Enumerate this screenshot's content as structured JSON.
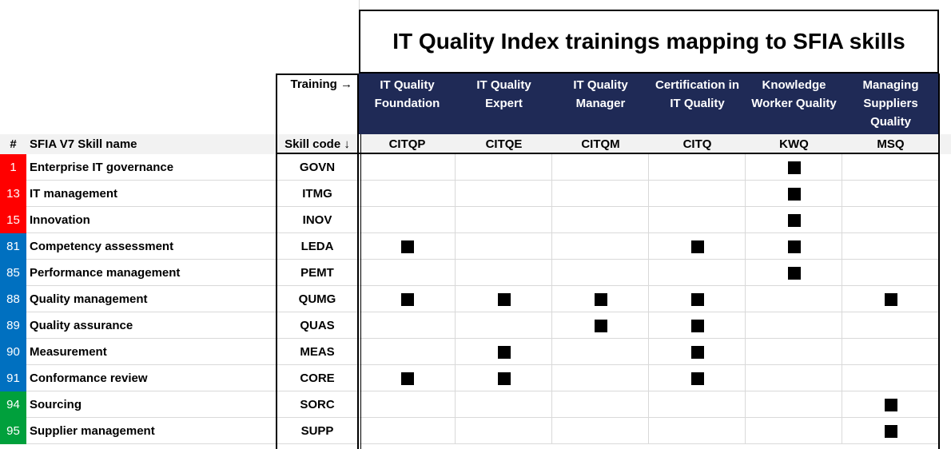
{
  "title": "IT Quality Index trainings mapping to SFIA skills",
  "training_label": "Training →",
  "skill_code_label": "Skill code ↓",
  "number_header": "#",
  "name_header": "SFIA V7 Skill name",
  "trainings": [
    {
      "name": "IT Quality Foundation",
      "code": "CITQP"
    },
    {
      "name": "IT Quality Expert",
      "code": "CITQE"
    },
    {
      "name": "IT Quality Manager",
      "code": "CITQM"
    },
    {
      "name": "Certification in IT Quality",
      "code": "CITQ"
    },
    {
      "name": "Knowledge Worker Quality",
      "code": "KWQ"
    },
    {
      "name": "Managing Suppliers Quality",
      "code": "MSQ"
    }
  ],
  "rows": [
    {
      "number": 1,
      "name": "Enterprise IT governance",
      "code": "GOVN",
      "color": "#ff0000",
      "marks": [
        false,
        false,
        false,
        false,
        true,
        false
      ]
    },
    {
      "number": 13,
      "name": "IT management",
      "code": "ITMG",
      "color": "#ff0000",
      "marks": [
        false,
        false,
        false,
        false,
        true,
        false
      ]
    },
    {
      "number": 15,
      "name": "Innovation",
      "code": "INOV",
      "color": "#ff0000",
      "marks": [
        false,
        false,
        false,
        false,
        true,
        false
      ]
    },
    {
      "number": 81,
      "name": "Competency assessment",
      "code": "LEDA",
      "color": "#0070c0",
      "marks": [
        true,
        false,
        false,
        true,
        true,
        false
      ]
    },
    {
      "number": 85,
      "name": "Performance management",
      "code": "PEMT",
      "color": "#0070c0",
      "marks": [
        false,
        false,
        false,
        false,
        true,
        false
      ]
    },
    {
      "number": 88,
      "name": "Quality management",
      "code": "QUMG",
      "color": "#0070c0",
      "marks": [
        true,
        true,
        true,
        true,
        false,
        true
      ]
    },
    {
      "number": 89,
      "name": "Quality assurance",
      "code": "QUAS",
      "color": "#0070c0",
      "marks": [
        false,
        false,
        true,
        true,
        false,
        false
      ]
    },
    {
      "number": 90,
      "name": "Measurement",
      "code": "MEAS",
      "color": "#0070c0",
      "marks": [
        false,
        true,
        false,
        true,
        false,
        false
      ]
    },
    {
      "number": 91,
      "name": "Conformance review",
      "code": "CORE",
      "color": "#0070c0",
      "marks": [
        true,
        true,
        false,
        true,
        false,
        false
      ]
    },
    {
      "number": 94,
      "name": "Sourcing",
      "code": "SORC",
      "color": "#00a03c",
      "marks": [
        false,
        false,
        false,
        false,
        false,
        true
      ]
    },
    {
      "number": 95,
      "name": "Supplier management",
      "code": "SUPP",
      "color": "#00a03c",
      "marks": [
        false,
        false,
        false,
        false,
        false,
        true
      ]
    }
  ]
}
